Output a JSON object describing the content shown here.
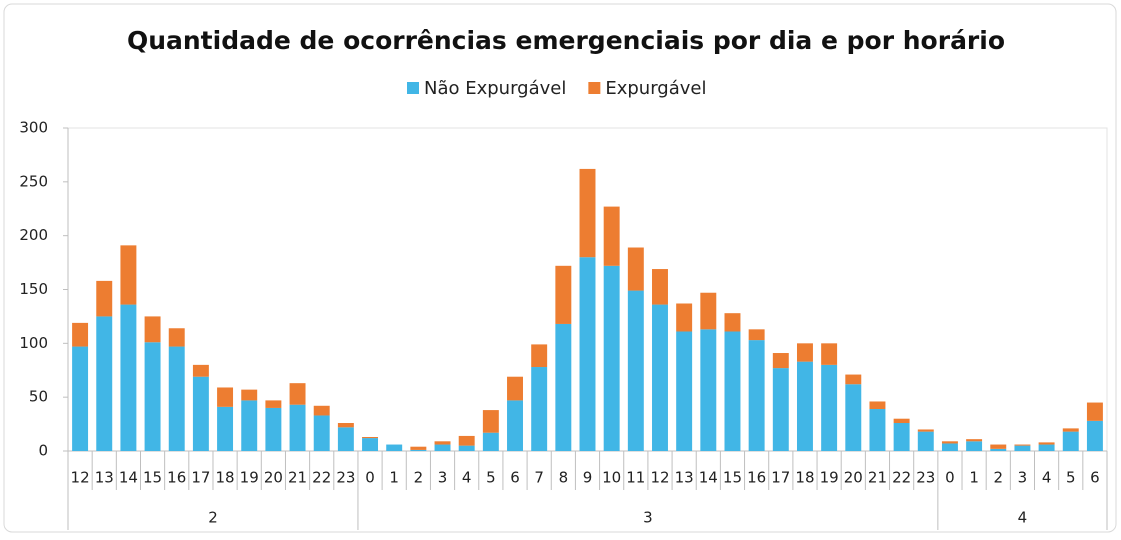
{
  "chart_data": {
    "type": "stacked_bar",
    "title": "Quantidade de ocorrências emergenciais por dia e por horário",
    "category_groups": [
      {
        "label": "2",
        "categories": [
          "12",
          "13",
          "14",
          "15",
          "16",
          "17",
          "18",
          "19",
          "20",
          "21",
          "22",
          "23"
        ]
      },
      {
        "label": "3",
        "categories": [
          "0",
          "1",
          "2",
          "3",
          "4",
          "5",
          "6",
          "7",
          "8",
          "9",
          "10",
          "11",
          "12",
          "13",
          "14",
          "15",
          "16",
          "17",
          "18",
          "19",
          "20",
          "21",
          "22",
          "23"
        ]
      },
      {
        "label": "4",
        "categories": [
          "0",
          "1",
          "2",
          "3",
          "4",
          "5",
          "6"
        ]
      }
    ],
    "series": [
      {
        "name": "Não Expurgável",
        "color": "#41b6e6",
        "values": [
          97,
          125,
          136,
          101,
          97,
          69,
          41,
          47,
          40,
          43,
          33,
          22,
          12,
          6,
          1,
          6,
          5,
          17,
          47,
          78,
          118,
          180,
          172,
          149,
          136,
          111,
          113,
          111,
          103,
          77,
          83,
          80,
          62,
          39,
          26,
          18,
          7,
          9,
          2,
          5,
          6,
          18,
          28
        ]
      },
      {
        "name": "Expurgável",
        "color": "#ed7d31",
        "values": [
          22,
          33,
          55,
          24,
          17,
          11,
          18,
          10,
          7,
          20,
          9,
          4,
          1,
          0,
          3,
          3,
          9,
          21,
          22,
          21,
          54,
          82,
          55,
          40,
          33,
          26,
          34,
          17,
          10,
          14,
          17,
          20,
          9,
          7,
          4,
          2,
          2,
          2,
          4,
          1,
          2,
          3,
          17
        ]
      }
    ],
    "ylim": [
      0,
      300
    ],
    "yticks": [
      0,
      50,
      100,
      150,
      200,
      250,
      300
    ],
    "grid": false,
    "legend": "top"
  }
}
